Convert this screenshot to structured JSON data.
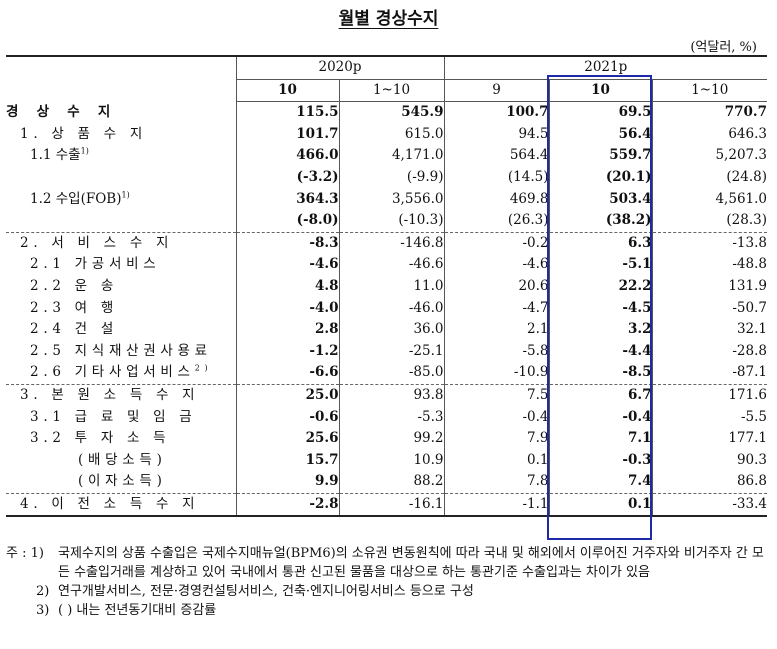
{
  "title": "월별 경상수지",
  "unit": "(억달러, %)",
  "header": {
    "year_2020": "2020p",
    "year_2021": "2021p",
    "cols": [
      "10",
      "1~10",
      "9",
      "10",
      "1~10"
    ]
  },
  "rows": [
    {
      "label": "경 상 수 지",
      "values": [
        "115.5",
        "545.9",
        "100.7",
        "69.5",
        "770.7"
      ]
    },
    {
      "label": "1. 상 품 수 지",
      "values": [
        "101.7",
        "615.0",
        "94.5",
        "56.4",
        "646.3"
      ]
    },
    {
      "label": "1.1 수출",
      "sup": "1)",
      "values": [
        "466.0",
        "4,171.0",
        "564.4",
        "559.7",
        "5,207.3"
      ]
    },
    {
      "label": "",
      "values": [
        "(-3.2)",
        "(-9.9)",
        "(14.5)",
        "(20.1)",
        "(24.8)"
      ]
    },
    {
      "label": "1.2 수입(FOB)",
      "sup": "1)",
      "values": [
        "364.3",
        "3,556.0",
        "469.8",
        "503.4",
        "4,561.0"
      ]
    },
    {
      "label": "",
      "values": [
        "(-8.0)",
        "(-10.3)",
        "(26.3)",
        "(38.2)",
        "(28.3)"
      ]
    },
    {
      "label": "2. 서 비 스 수 지",
      "values": [
        "-8.3",
        "-146.8",
        "-0.2",
        "6.3",
        "-13.8"
      ]
    },
    {
      "label": "2.1 가공서비스",
      "values": [
        "-4.6",
        "-46.6",
        "-4.6",
        "-5.1",
        "-48.8"
      ]
    },
    {
      "label": "2.2 운 송",
      "values": [
        "4.8",
        "11.0",
        "20.6",
        "22.2",
        "131.9"
      ]
    },
    {
      "label": "2.3 여 행",
      "values": [
        "-4.0",
        "-46.0",
        "-4.7",
        "-4.5",
        "-50.7"
      ]
    },
    {
      "label": "2.4 건 설",
      "values": [
        "2.8",
        "36.0",
        "2.1",
        "3.2",
        "32.1"
      ]
    },
    {
      "label": "2.5 지식재산권사용료",
      "values": [
        "-1.2",
        "-25.1",
        "-5.8",
        "-4.4",
        "-28.8"
      ]
    },
    {
      "label": "2.6 기타사업서비스",
      "sup": "2)",
      "values": [
        "-6.6",
        "-85.0",
        "-10.9",
        "-8.5",
        "-87.1"
      ]
    },
    {
      "label": "3. 본 원 소 득 수 지",
      "values": [
        "25.0",
        "93.8",
        "7.5",
        "6.7",
        "171.6"
      ]
    },
    {
      "label": "3.1 급 료 및 임 금",
      "values": [
        "-0.6",
        "-5.3",
        "-0.4",
        "-0.4",
        "-5.5"
      ]
    },
    {
      "label": "3.2 투 자 소 득",
      "values": [
        "25.6",
        "99.2",
        "7.9",
        "7.1",
        "177.1"
      ]
    },
    {
      "label": "(배당소득)",
      "values": [
        "15.7",
        "10.9",
        "0.1",
        "-0.3",
        "90.3"
      ]
    },
    {
      "label": "(이자소득)",
      "values": [
        "9.9",
        "88.2",
        "7.8",
        "7.4",
        "86.8"
      ]
    },
    {
      "label": "4. 이 전 소 득 수 지",
      "values": [
        "-2.8",
        "-16.1",
        "-1.1",
        "0.1",
        "-33.4"
      ]
    }
  ],
  "notes": {
    "head": "주 : 1)",
    "n1": "국제수지의 상품 수출입은 국제수지매뉴얼(BPM6)의 소유권 변동원칙에 따라 국내 및 해외에서 이루어진 거주자와 비거주자 간 모든 수출입거래를 계상하고 있어 국내에서 통관 신고된 물품을 대상으로 하는 통관기준 수출입과는 차이가 있음",
    "n2_head": "2)",
    "n2": "연구개발서비스, 전문·경영컨설팅서비스, 건축·엔지니어링서비스 등으로 구성",
    "n3_head": "3)",
    "n3": "( ) 내는 전년동기대비 증감률"
  },
  "colors": {
    "highlight_border": "#1e2aa8"
  }
}
